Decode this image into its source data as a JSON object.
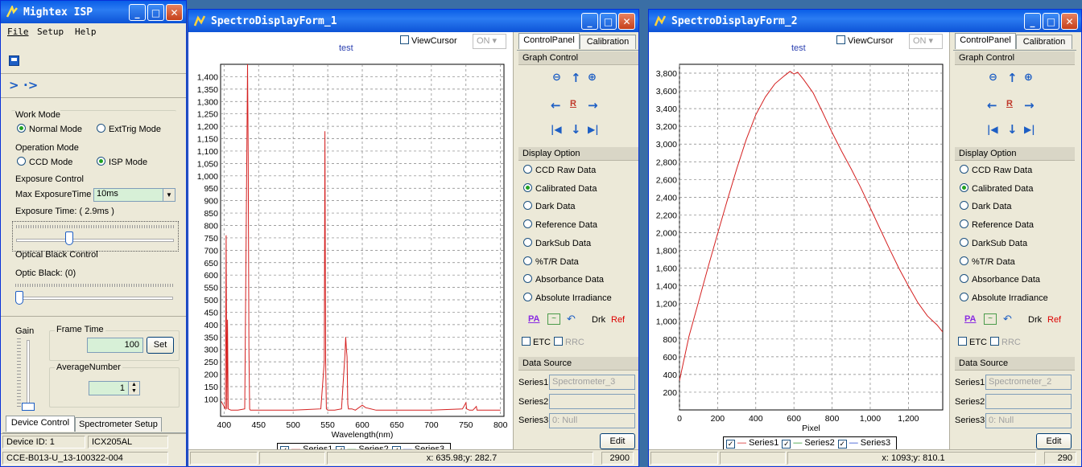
{
  "isp_window": {
    "title": "Mightex ISP",
    "menu": [
      "File",
      "Setup",
      "Help"
    ],
    "work_mode_label": "Work Mode",
    "work_modes": [
      "Normal Mode",
      "ExtTrig Mode"
    ],
    "operation_mode_label": "Operation Mode",
    "operation_modes": [
      "CCD Mode",
      "ISP Mode"
    ],
    "exposure_control_label": "Exposure Control",
    "max_exposure_label": "Max ExposureTime",
    "max_exposure_value": "10ms",
    "exposure_time_text": "Exposure Time: ( 2.9ms )",
    "exposure_slider_level": 0.33,
    "optical_black_label": "Optical Black  Control",
    "optic_black_text": "Optic Black: (0)",
    "optic_black_level": 0.0,
    "gain_label": "Gain",
    "frame_time_label": "Frame Time",
    "frame_time_value": "100",
    "set_button": "Set",
    "average_number_label": "AverageNumber",
    "average_number_value": "1",
    "tabs": [
      "Device Control",
      "Spectrometer Setup"
    ],
    "device_id": "Device ID: 1",
    "sensor": "ICX205AL",
    "firmware": "CCE-B013-U_13-100322-004"
  },
  "spectro_forms": [
    {
      "title": "SpectroDisplayForm_1",
      "chart_title": "test",
      "viewcursor_label": "ViewCursor",
      "cursor_state": "ON",
      "tabs": [
        "ControlPanel",
        "Calibration"
      ],
      "graph_control_label": "Graph Control",
      "display_option_label": "Display Option",
      "display_options": [
        "CCD Raw Data",
        "Calibrated Data",
        "Dark Data",
        "Reference Data",
        "DarkSub Data",
        "%T/R Data",
        "Absorbance Data",
        "Absolute Irradiance"
      ],
      "selected_option": 1,
      "drk_label": "Drk",
      "ref_label": "Ref",
      "etc_label": "ETC",
      "rrc_label": "RRC",
      "data_source_label": "Data Source",
      "series_labels": [
        "Series1:",
        "Series2:",
        "Series3"
      ],
      "series_values": [
        "Spectrometer_3",
        "",
        "0: Null"
      ],
      "edit_button": "Edit",
      "legend": [
        "Series1",
        "Series2",
        "Series3"
      ],
      "status_xy": "x: 635.98;y: 282.7",
      "status_count": "2900"
    },
    {
      "title": "SpectroDisplayForm_2",
      "chart_title": "test",
      "viewcursor_label": "ViewCursor",
      "cursor_state": "ON",
      "tabs": [
        "ControlPanel",
        "Calibration"
      ],
      "graph_control_label": "Graph Control",
      "display_option_label": "Display Option",
      "display_options": [
        "CCD Raw Data",
        "Calibrated Data",
        "Dark Data",
        "Reference Data",
        "DarkSub Data",
        "%T/R Data",
        "Absorbance Data",
        "Absolute Irradiance"
      ],
      "selected_option": 1,
      "drk_label": "Drk",
      "ref_label": "Ref",
      "etc_label": "ETC",
      "rrc_label": "RRC",
      "data_source_label": "Data Source",
      "series_labels": [
        "Series1:",
        "Series2:",
        "Series3"
      ],
      "series_values": [
        "Spectrometer_2",
        "",
        "0: Null"
      ],
      "edit_button": "Edit",
      "legend": [
        "Series1",
        "Series2",
        "Series3"
      ],
      "status_xy": "x: 1093;y: 810.1",
      "status_count": "290"
    }
  ],
  "colors": {
    "series": "#d42020",
    "grid": "#808080",
    "accent": "#0a5ee8"
  },
  "chart_data": [
    {
      "type": "line",
      "title": "test",
      "xlabel": "Wavelength(nm)",
      "ylabel": "",
      "xlim": [
        395,
        805
      ],
      "ylim": [
        30,
        1450
      ],
      "x_ticks": [
        400,
        450,
        500,
        550,
        600,
        650,
        700,
        750,
        800
      ],
      "y_ticks": [
        100,
        150,
        200,
        250,
        300,
        350,
        400,
        450,
        500,
        550,
        600,
        650,
        700,
        750,
        800,
        850,
        900,
        950,
        1000,
        1050,
        1100,
        1150,
        1200,
        1250,
        1300,
        1350,
        1400
      ],
      "grid": true,
      "legend_position": "bottom",
      "series": [
        {
          "name": "Series1",
          "x": [
            396,
            402,
            403,
            404,
            405,
            406,
            410,
            420,
            430,
            434,
            435,
            436,
            437,
            438,
            440,
            460,
            500,
            540,
            545,
            546,
            547,
            548,
            550,
            560,
            570,
            575,
            576,
            577,
            578,
            579,
            580,
            585,
            590,
            600,
            605,
            620,
            650,
            700,
            745,
            750,
            751,
            755,
            760,
            765,
            766,
            780,
            800
          ],
          "y": [
            90,
            60,
            760,
            60,
            420,
            60,
            55,
            55,
            60,
            1450,
            1080,
            300,
            60,
            55,
            55,
            55,
            55,
            60,
            250,
            1180,
            250,
            60,
            55,
            55,
            60,
            280,
            350,
            300,
            270,
            80,
            60,
            60,
            55,
            75,
            65,
            55,
            55,
            55,
            60,
            85,
            60,
            55,
            55,
            70,
            55,
            55,
            55
          ]
        },
        {
          "name": "Series2",
          "x": [],
          "y": []
        },
        {
          "name": "Series3",
          "x": [],
          "y": []
        }
      ]
    },
    {
      "type": "line",
      "title": "test",
      "xlabel": "Pixel",
      "ylabel": "",
      "xlim": [
        0,
        1380
      ],
      "ylim": [
        0,
        3900
      ],
      "x_ticks": [
        0,
        200,
        400,
        600,
        800,
        1000,
        1200
      ],
      "x_tick_labels": [
        "0",
        "200",
        "400",
        "600",
        "800",
        "1,000",
        "1,200"
      ],
      "y_ticks": [
        200,
        400,
        600,
        800,
        1000,
        1200,
        1400,
        1600,
        1800,
        2000,
        2200,
        2400,
        2600,
        2800,
        3000,
        3200,
        3400,
        3600,
        3800
      ],
      "grid": true,
      "legend_position": "bottom",
      "series": [
        {
          "name": "Series1",
          "x": [
            0,
            50,
            100,
            150,
            200,
            250,
            300,
            350,
            400,
            450,
            500,
            550,
            580,
            600,
            620,
            650,
            700,
            750,
            800,
            850,
            900,
            950,
            1000,
            1050,
            1100,
            1150,
            1200,
            1250,
            1300,
            1350,
            1380
          ],
          "y": [
            330,
            830,
            1220,
            1610,
            1990,
            2360,
            2720,
            3050,
            3330,
            3530,
            3680,
            3770,
            3820,
            3790,
            3810,
            3730,
            3580,
            3360,
            3130,
            2920,
            2720,
            2510,
            2280,
            2050,
            1820,
            1600,
            1400,
            1210,
            1060,
            960,
            880
          ]
        },
        {
          "name": "Series2",
          "x": [],
          "y": []
        },
        {
          "name": "Series3",
          "x": [],
          "y": []
        }
      ]
    }
  ]
}
